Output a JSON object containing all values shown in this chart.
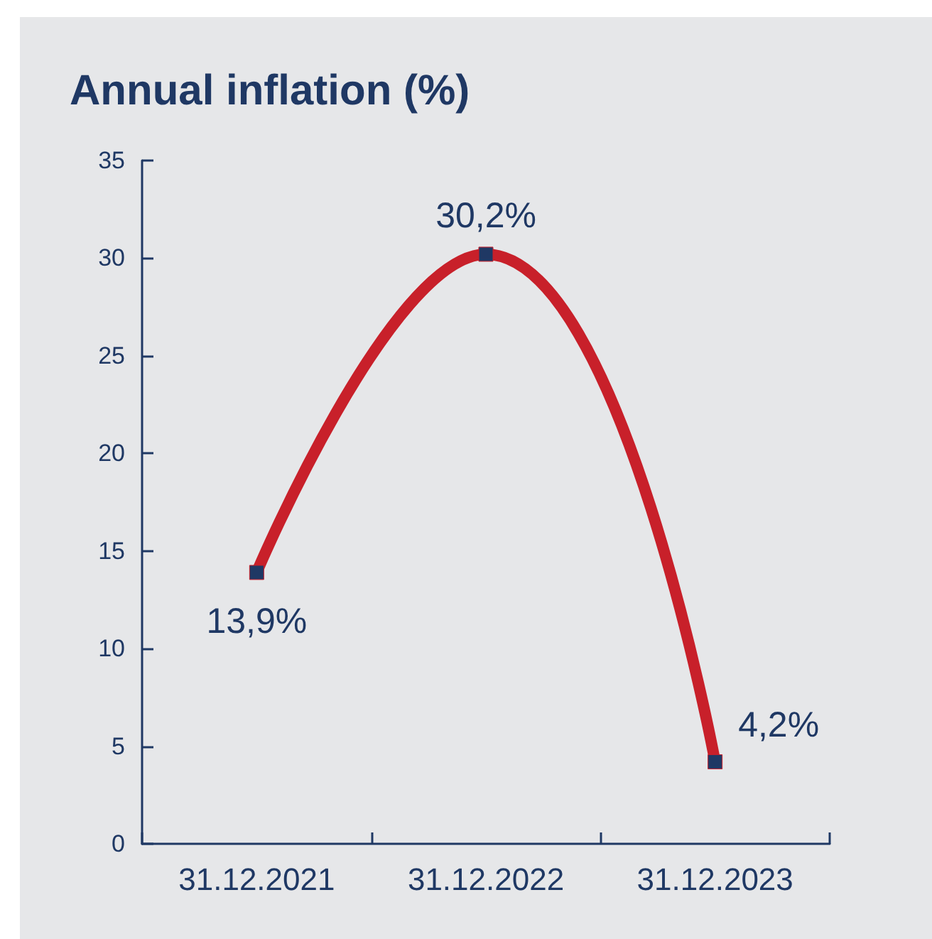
{
  "chart_data": {
    "type": "line",
    "title": "Annual inflation (%)",
    "categories": [
      "31.12.2021",
      "31.12.2022",
      "31.12.2023"
    ],
    "series": [
      {
        "color": "#c8202a",
        "values": [
          13.9,
          30.2,
          4.2
        ],
        "value_labels": [
          "13,9%",
          "30,2%",
          "4,2%"
        ]
      }
    ],
    "ylim": [
      0,
      35
    ],
    "yticks": [
      0,
      5,
      10,
      15,
      20,
      25,
      30,
      35
    ],
    "grid": false,
    "marker": "square",
    "line_style": "solid"
  }
}
